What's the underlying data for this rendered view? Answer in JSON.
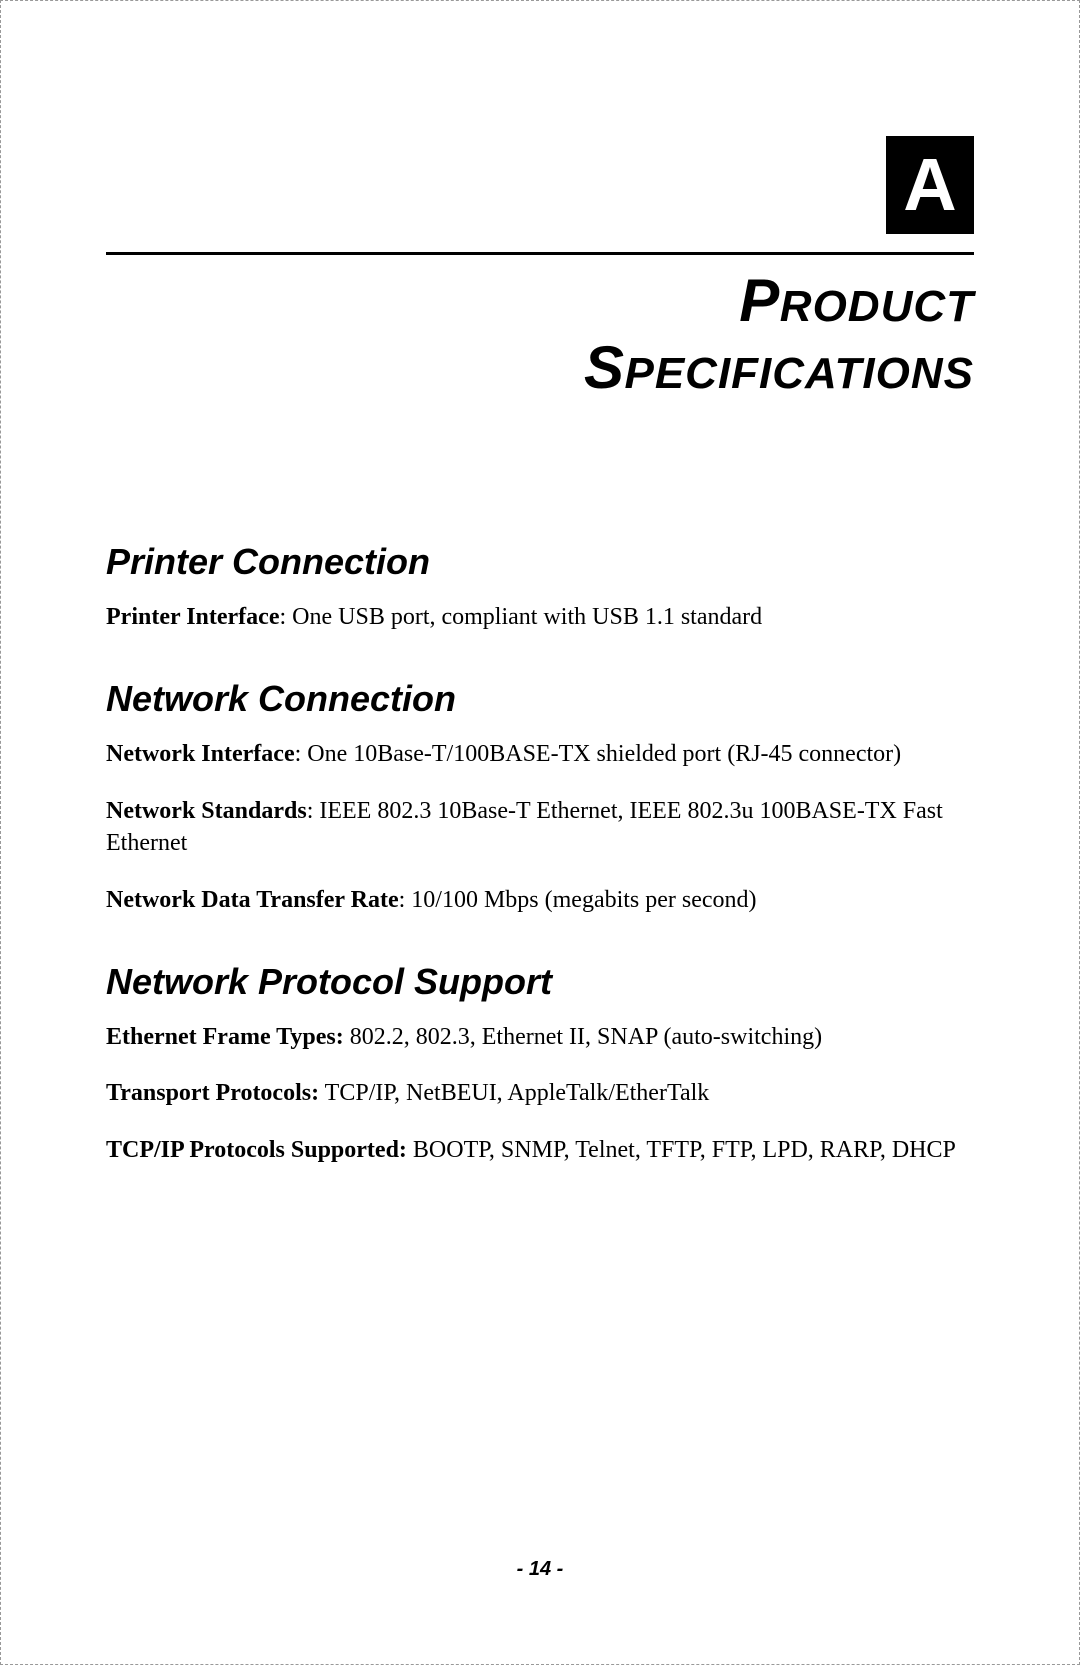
{
  "appendix_letter": "A",
  "main_title": {
    "word1_first": "P",
    "word1_rest": "RODUCT",
    "word2_first": "S",
    "word2_rest": "PECIFICATIONS"
  },
  "sections": [
    {
      "heading": "Printer Connection",
      "items": [
        {
          "label": "Printer Interface",
          "sep": ": ",
          "value": "One USB port, compliant with USB 1.1 standard"
        }
      ]
    },
    {
      "heading": "Network Connection",
      "items": [
        {
          "label": "Network Interface",
          "sep": ": ",
          "value": "One 10Base-T/100BASE-TX shielded port (RJ-45 connector)"
        },
        {
          "label": "Network Standards",
          "sep": ": ",
          "value": "IEEE 802.3 10Base-T Ethernet, IEEE 802.3u 100BASE-TX Fast Ethernet"
        },
        {
          "label": "Network Data Transfer Rate",
          "sep": ": ",
          "value": "10/100 Mbps (megabits per second)"
        }
      ]
    },
    {
      "heading": "Network Protocol Support",
      "items": [
        {
          "label": "Ethernet Frame Types:",
          "sep": " ",
          "value": "802.2, 802.3, Ethernet II, SNAP (auto-switching)"
        },
        {
          "label": "Transport Protocols:",
          "sep": " ",
          "value": "TCP/IP, NetBEUI, AppleTalk/EtherTalk"
        },
        {
          "label": "TCP/IP Protocols Supported:",
          "sep": " ",
          "value": "BOOTP, SNMP, Telnet, TFTP, FTP, LPD, RARP, DHCP"
        }
      ]
    }
  ],
  "page_number": "- 14 -",
  "colors": {
    "text": "#000000",
    "background": "#ffffff",
    "border": "#999999",
    "appendix_bg": "#000000",
    "appendix_fg": "#ffffff"
  },
  "fonts": {
    "body": "Times New Roman",
    "headings": "Arial"
  }
}
